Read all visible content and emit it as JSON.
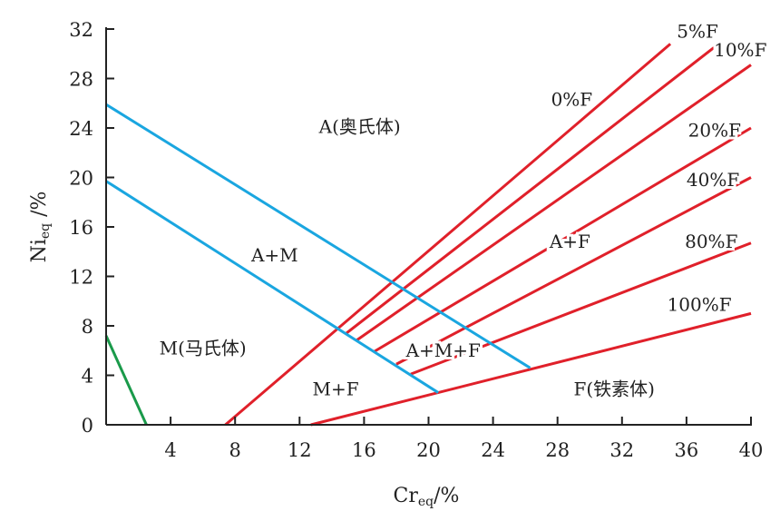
{
  "chart_data": {
    "type": "line",
    "xlabel": "Cr",
    "xlabel_sub": "eq",
    "xlabel_unit": "/%",
    "ylabel": "Ni",
    "ylabel_sub": "eq",
    "ylabel_unit": " /%",
    "xlim": [
      0,
      40
    ],
    "ylim": [
      0,
      32
    ],
    "xticks": [
      4,
      8,
      12,
      16,
      20,
      24,
      28,
      32,
      36,
      40
    ],
    "yticks": [
      0,
      4,
      8,
      12,
      16,
      20,
      24,
      28,
      32
    ],
    "grid": false,
    "colors": {
      "ferrite_lines": "#e0202a",
      "phase_boundaries": "#1aa6e0",
      "martensite_start": "#1a9a4a"
    },
    "series": [
      {
        "name": "0%F",
        "color": "#e0202a",
        "points": [
          [
            7.4,
            0
          ],
          [
            35.0,
            30.8
          ]
        ]
      },
      {
        "name": "5%F",
        "color": "#e0202a",
        "points": [
          [
            14.9,
            7.4
          ],
          [
            37.7,
            30.5
          ]
        ]
      },
      {
        "name": "10%F",
        "color": "#e0202a",
        "points": [
          [
            15.5,
            6.8
          ],
          [
            40.0,
            29.1
          ]
        ]
      },
      {
        "name": "20%F",
        "color": "#e0202a",
        "points": [
          [
            16.6,
            5.9
          ],
          [
            40.0,
            24.0
          ]
        ]
      },
      {
        "name": "40%F",
        "color": "#e0202a",
        "points": [
          [
            18.0,
            4.9
          ],
          [
            40.0,
            20.0
          ]
        ]
      },
      {
        "name": "80%F",
        "color": "#e0202a",
        "points": [
          [
            18.9,
            4.1
          ],
          [
            40.0,
            14.7
          ]
        ]
      },
      {
        "name": "100%F",
        "color": "#e0202a",
        "points": [
          [
            12.7,
            0
          ],
          [
            40.0,
            9.0
          ]
        ]
      },
      {
        "color": "#1aa6e0",
        "points": [
          [
            0,
            25.9
          ],
          [
            26.3,
            4.6
          ]
        ]
      },
      {
        "color": "#1aa6e0",
        "points": [
          [
            0,
            19.7
          ],
          [
            20.6,
            2.6
          ]
        ]
      },
      {
        "color": "#1a9a4a",
        "points": [
          [
            0,
            7.2
          ],
          [
            2.5,
            0
          ]
        ]
      }
    ],
    "annotations": [
      {
        "text": "A(奥氏体)",
        "x": 13.2,
        "y": 23.6
      },
      {
        "text": "A+M",
        "x": 9.0,
        "y": 13.2
      },
      {
        "text": "M(马氏体)",
        "x": 3.3,
        "y": 5.7
      },
      {
        "text": "M+F",
        "x": 12.8,
        "y": 2.4
      },
      {
        "text": "A+M+F",
        "x": 18.6,
        "y": 5.5
      },
      {
        "text": "A+F",
        "x": 27.5,
        "y": 14.3
      },
      {
        "text": "F(铁素体)",
        "x": 29.0,
        "y": 2.4
      },
      {
        "text": "0%F",
        "x": 27.6,
        "y": 25.8
      },
      {
        "text": "5%F",
        "x": 35.4,
        "y": 31.3
      },
      {
        "text": "10%F",
        "x": 37.7,
        "y": 29.8
      },
      {
        "text": "20%F",
        "x": 36.1,
        "y": 23.3
      },
      {
        "text": "40%F",
        "x": 36.0,
        "y": 19.3
      },
      {
        "text": "80%F",
        "x": 35.9,
        "y": 14.3
      },
      {
        "text": "100%F",
        "x": 34.8,
        "y": 9.2
      }
    ]
  }
}
